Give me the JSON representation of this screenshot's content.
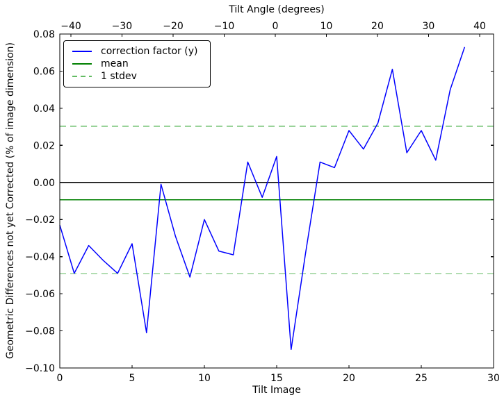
{
  "chart_data": {
    "type": "line",
    "title": "",
    "xlabel": "Tilt Image",
    "ylabel": "Geometric Differences not yet Corrected (% of image dimension)",
    "xlim": [
      0,
      30
    ],
    "ylim": [
      -0.1,
      0.08
    ],
    "grid": false,
    "legend_position": "upper left",
    "x_ticks": [
      {
        "label": "0",
        "x": 0
      },
      {
        "label": "5",
        "x": 5
      },
      {
        "label": "10",
        "x": 10
      },
      {
        "label": "15",
        "x": 15
      },
      {
        "label": "20",
        "x": 20
      },
      {
        "label": "25",
        "x": 25
      },
      {
        "label": "30",
        "x": 30
      }
    ],
    "y_ticks": [
      {
        "label": "0.08",
        "y": 0.08
      },
      {
        "label": "0.06",
        "y": 0.06
      },
      {
        "label": "0.04",
        "y": 0.04
      },
      {
        "label": "0.02",
        "y": 0.02
      },
      {
        "label": "0.00",
        "y": 0.0
      },
      {
        "label": "−0.02",
        "y": -0.02
      },
      {
        "label": "−0.04",
        "y": -0.04
      },
      {
        "label": "−0.06",
        "y": -0.06
      },
      {
        "label": "−0.08",
        "y": -0.08
      },
      {
        "label": "−0.10",
        "y": -0.1
      }
    ],
    "top_axis": {
      "label": "Tilt Angle (degrees)",
      "ticks": [
        {
          "label": "−40",
          "angle": -40,
          "x": 0.77
        },
        {
          "label": "−30",
          "angle": -30,
          "x": 4.3
        },
        {
          "label": "−20",
          "angle": -20,
          "x": 7.84
        },
        {
          "label": "−10",
          "angle": -10,
          "x": 11.37
        },
        {
          "label": "0",
          "angle": 0,
          "x": 14.9
        },
        {
          "label": "10",
          "angle": 10,
          "x": 18.44
        },
        {
          "label": "20",
          "angle": 20,
          "x": 21.97
        },
        {
          "label": "30",
          "angle": 30,
          "x": 25.5
        },
        {
          "label": "40",
          "angle": 40,
          "x": 29.04
        }
      ]
    },
    "series": {
      "name": "correction factor (y)",
      "color": "#0000ff",
      "x": [
        0,
        1,
        2,
        3,
        4,
        5,
        6,
        7,
        8,
        9,
        10,
        11,
        12,
        13,
        14,
        15,
        16,
        17,
        18,
        19,
        20,
        21,
        22,
        23,
        24,
        25,
        26,
        27,
        28
      ],
      "y": [
        -0.023,
        -0.049,
        -0.034,
        -0.042,
        -0.049,
        -0.033,
        -0.081,
        -0.001,
        -0.029,
        -0.051,
        -0.02,
        -0.037,
        -0.039,
        0.011,
        -0.008,
        0.014,
        -0.09,
        -0.038,
        0.011,
        0.008,
        0.028,
        0.018,
        0.032,
        0.061,
        0.016,
        0.028,
        0.012,
        0.05,
        0.073
      ]
    },
    "zero_line": {
      "color": "#000000",
      "value": 0.0
    },
    "mean_line": {
      "name": "mean",
      "color": "#008000",
      "value": -0.0094
    },
    "stdev_lines": {
      "name": "1 stdev",
      "color": "#63bb63",
      "stdev": 0.0397,
      "values": [
        0.0303,
        -0.0491
      ],
      "dash": true
    },
    "legend_entries": [
      {
        "label": "correction factor (y)",
        "color": "#0000ff",
        "dash": false
      },
      {
        "label": "mean",
        "color": "#008000",
        "dash": false
      },
      {
        "label": "1 stdev",
        "color": "#63bb63",
        "dash": true
      }
    ]
  }
}
